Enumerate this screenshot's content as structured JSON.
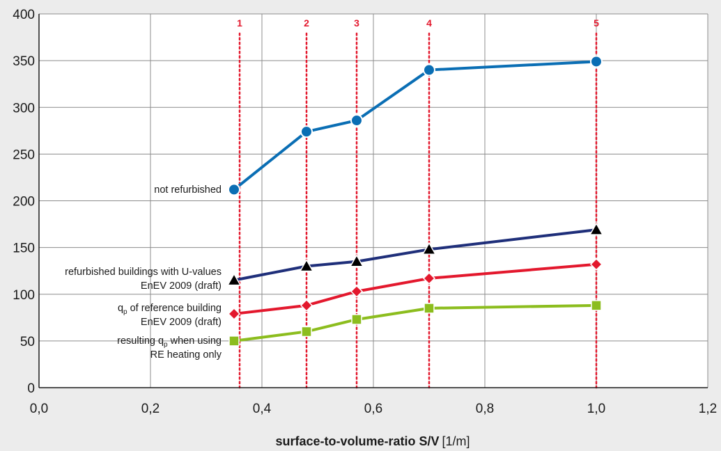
{
  "chart_data": {
    "type": "line",
    "xlabel": "surface-to-volume-ratio S/V",
    "xlabel_unit": "[1/m]",
    "xlim": [
      0,
      1.2
    ],
    "ylim": [
      0,
      400
    ],
    "x_ticks": [
      "0,0",
      "0,2",
      "0,4",
      "0,6",
      "0,8",
      "1,0",
      "1,2"
    ],
    "y_ticks": [
      "0",
      "50",
      "100",
      "150",
      "200",
      "250",
      "300",
      "350",
      "400"
    ],
    "grid": true,
    "reference_lines": [
      {
        "label": "1",
        "x": 0.36
      },
      {
        "label": "2",
        "x": 0.48
      },
      {
        "label": "3",
        "x": 0.57
      },
      {
        "label": "4",
        "x": 0.7
      },
      {
        "label": "5",
        "x": 1.0
      }
    ],
    "series": [
      {
        "name": "not refurbished",
        "color": "#0a6eb4",
        "marker": "circle",
        "x": [
          0.35,
          0.48,
          0.57,
          0.7,
          1.0
        ],
        "values": [
          212,
          274,
          286,
          340,
          349
        ]
      },
      {
        "name": "refurbished buildings with U-values EnEV 2009 (draft)",
        "color": "#1f2f7a",
        "marker": "triangle",
        "x": [
          0.35,
          0.48,
          0.57,
          0.7,
          1.0
        ],
        "values": [
          115,
          130,
          135,
          148,
          169
        ]
      },
      {
        "name": "qp of reference building EnEV 2009 (draft)",
        "color": "#e3182d",
        "marker": "diamond",
        "x": [
          0.35,
          0.48,
          0.57,
          0.7,
          1.0
        ],
        "values": [
          79,
          88,
          103,
          117,
          132
        ]
      },
      {
        "name": "resulting qp when using RE heating only",
        "color": "#8cbd1e",
        "marker": "square",
        "x": [
          0.35,
          0.48,
          0.57,
          0.7,
          1.0
        ],
        "values": [
          50,
          60,
          73,
          85,
          88
        ]
      }
    ],
    "annotations": {
      "not_refurbished": "not refurbished",
      "refurbished_1": "refurbished buildings with U-values",
      "refurbished_2": "EnEV 2009 (draft)",
      "reference_1a": "q",
      "reference_1b": "p",
      "reference_1c": " of reference building",
      "reference_2": "EnEV 2009 (draft)",
      "re_1a": "resulting q",
      "re_1b": "p",
      "re_1c": " when using",
      "re_2": "RE heating only"
    }
  }
}
